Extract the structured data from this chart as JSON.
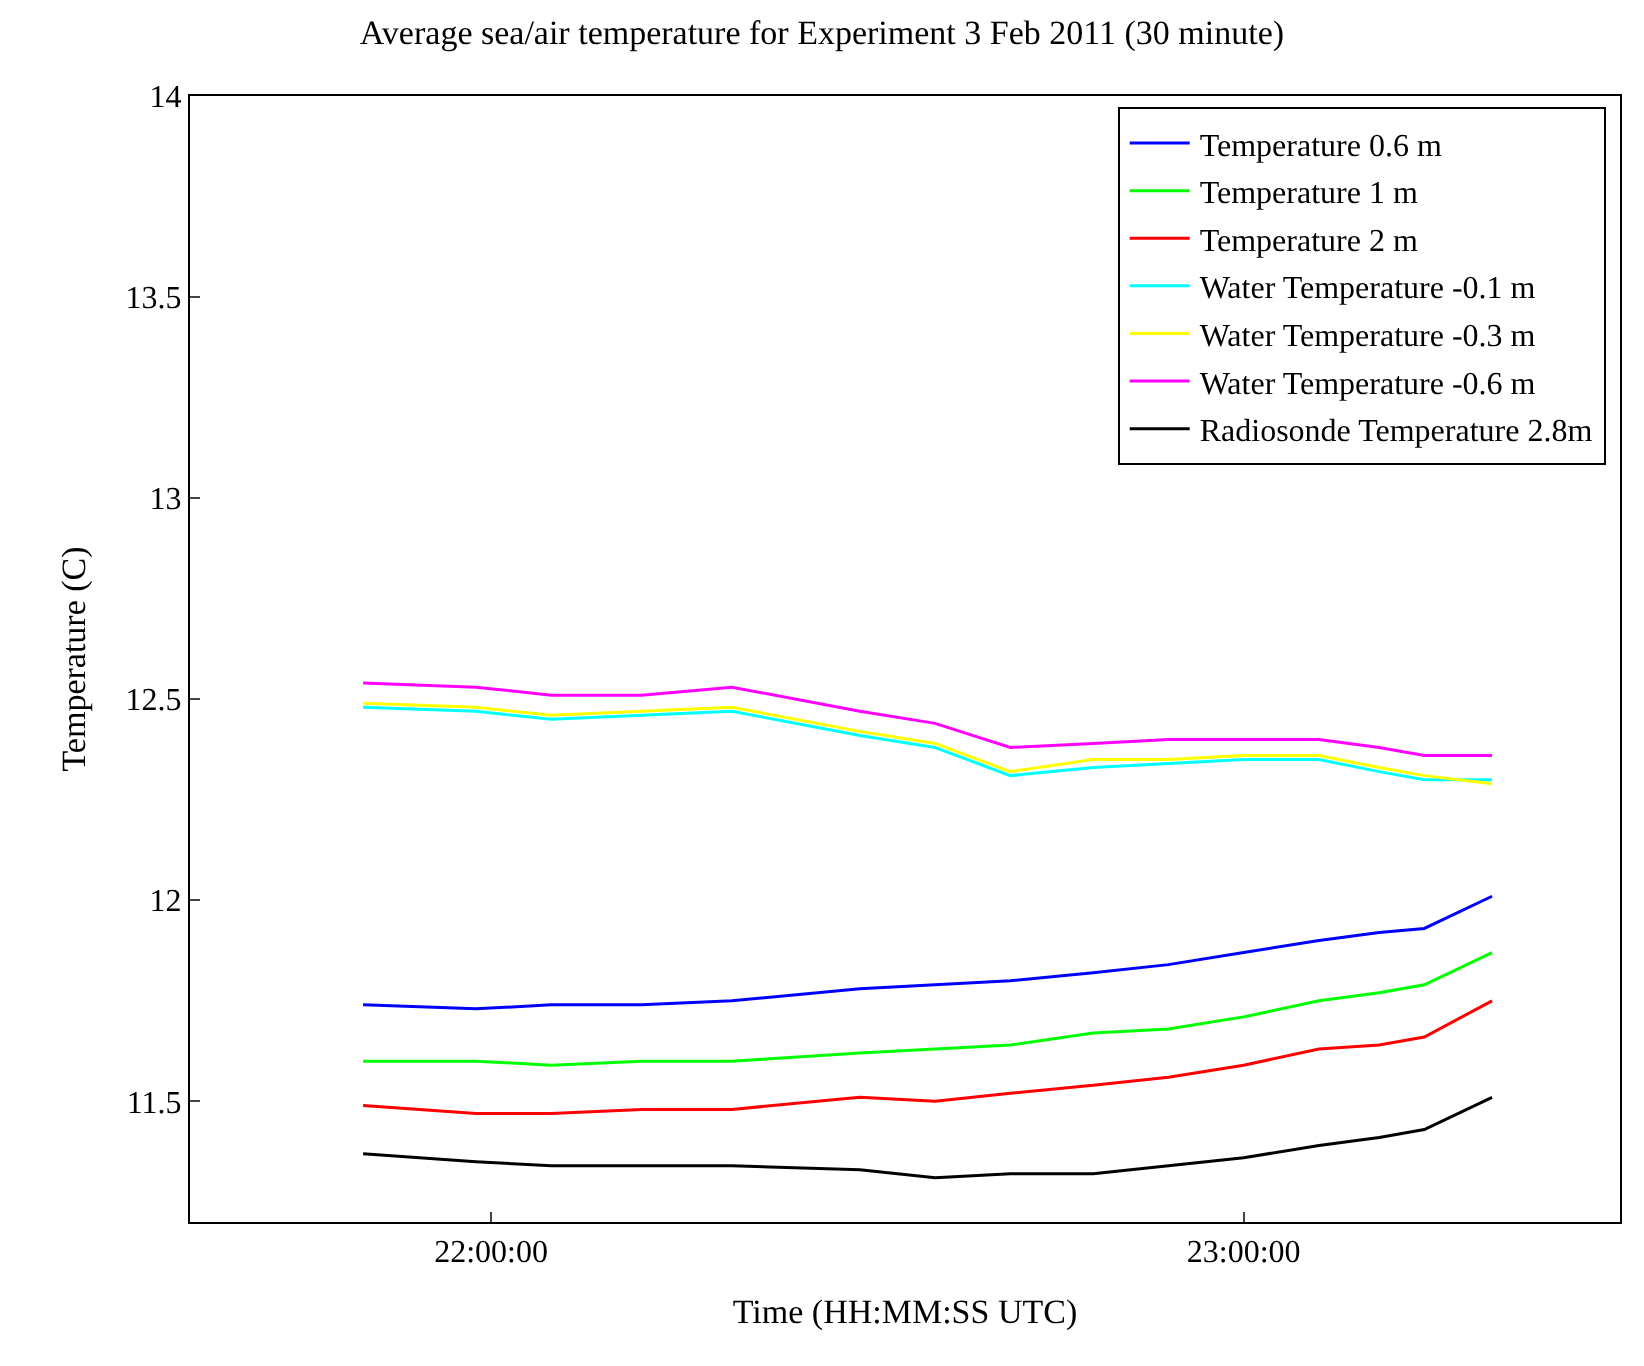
{
  "chart_data": {
    "type": "line",
    "title": "Average sea/air temperature for Experiment 3 Feb 2011 (30 minute)",
    "xlabel": "Time (HH:MM:SS UTC)",
    "ylabel": "Temperature (C)",
    "x": [
      21.83,
      21.98,
      22.08,
      22.2,
      22.32,
      22.49,
      22.59,
      22.69,
      22.8,
      22.9,
      23.0,
      23.1,
      23.18,
      23.24,
      23.33
    ],
    "series": [
      {
        "name": "Temperature 0.6 m",
        "color": "#0000ff",
        "values": [
          11.74,
          11.73,
          11.74,
          11.74,
          11.75,
          11.78,
          11.79,
          11.8,
          11.82,
          11.84,
          11.87,
          11.9,
          11.92,
          11.93,
          12.01
        ]
      },
      {
        "name": "Temperature 1 m",
        "color": "#00ff00",
        "values": [
          11.6,
          11.6,
          11.59,
          11.6,
          11.6,
          11.62,
          11.63,
          11.64,
          11.67,
          11.68,
          11.71,
          11.75,
          11.77,
          11.79,
          11.87
        ]
      },
      {
        "name": "Temperature 2 m",
        "color": "#ff0000",
        "values": [
          11.49,
          11.47,
          11.47,
          11.48,
          11.48,
          11.51,
          11.5,
          11.52,
          11.54,
          11.56,
          11.59,
          11.63,
          11.64,
          11.66,
          11.75
        ]
      },
      {
        "name": "Water Temperature -0.1 m",
        "color": "#00ffff",
        "values": [
          12.48,
          12.47,
          12.45,
          12.46,
          12.47,
          12.41,
          12.38,
          12.31,
          12.33,
          12.34,
          12.35,
          12.35,
          12.32,
          12.3,
          12.3
        ]
      },
      {
        "name": "Water Temperature -0.3 m",
        "color": "#ffff00",
        "values": [
          12.49,
          12.48,
          12.46,
          12.47,
          12.48,
          12.42,
          12.39,
          12.32,
          12.35,
          12.35,
          12.36,
          12.36,
          12.33,
          12.31,
          12.29
        ]
      },
      {
        "name": "Water Temperature -0.6 m",
        "color": "#ff00ff",
        "values": [
          12.54,
          12.53,
          12.51,
          12.51,
          12.53,
          12.47,
          12.44,
          12.38,
          12.39,
          12.4,
          12.4,
          12.4,
          12.38,
          12.36,
          12.36
        ]
      },
      {
        "name": "Radiosonde Temperature 2.8m",
        "color": "#000000",
        "values": [
          11.37,
          11.35,
          11.34,
          11.34,
          11.34,
          11.33,
          11.31,
          11.32,
          11.32,
          11.34,
          11.36,
          11.39,
          11.41,
          11.43,
          11.51
        ]
      }
    ],
    "xlim": [
      21.6,
      23.5
    ],
    "xticks": [
      {
        "value": 22,
        "label": "22:00:00"
      },
      {
        "value": 23,
        "label": "23:00:00"
      }
    ],
    "ylim": [
      11.2,
      14
    ],
    "yticks": [
      11.5,
      12,
      12.5,
      13,
      13.5,
      14
    ],
    "legend": "top right",
    "marker": "none",
    "line_style": "solid"
  }
}
